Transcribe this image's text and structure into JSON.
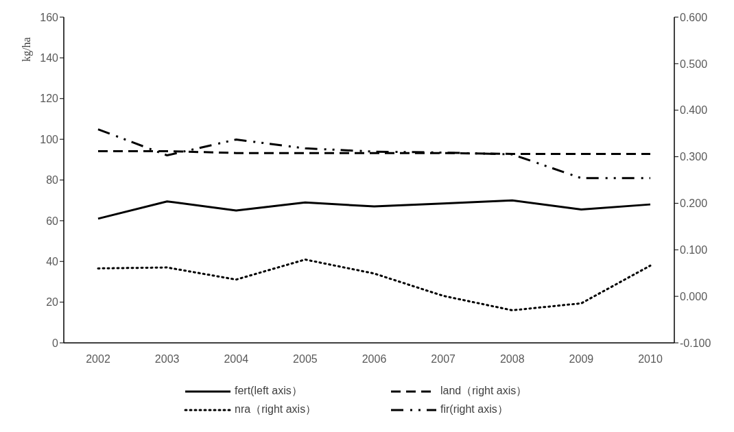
{
  "chart_data": {
    "type": "line",
    "ylabel": "kg/ha",
    "categories": [
      "2002",
      "2003",
      "2004",
      "2005",
      "2006",
      "2007",
      "2008",
      "2009",
      "2010"
    ],
    "ylim": [
      0,
      160
    ],
    "yticks": [
      0,
      20,
      40,
      60,
      80,
      100,
      120,
      140,
      160
    ],
    "y2lim": [
      -0.1,
      0.6
    ],
    "y2ticks": [
      {
        "value": -0.1,
        "label": "-0.100"
      },
      {
        "value": 0,
        "label": "0.000"
      },
      {
        "value": 0.1,
        "label": "0.100"
      },
      {
        "value": 0.2,
        "label": "0.200"
      },
      {
        "value": 0.3,
        "label": "0.300"
      },
      {
        "value": 0.4,
        "label": "0.400"
      },
      {
        "value": 0.5,
        "label": "0.500"
      },
      {
        "value": 0.6,
        "label": "0.600"
      }
    ],
    "grid": false,
    "legend": "bottom",
    "marker": "none",
    "series": [
      {
        "name": "fert(left axis）",
        "color": "#000000",
        "line_style": "solid",
        "values": [
          61,
          69.5,
          65,
          69,
          67,
          68.5,
          70,
          65.5,
          68
        ]
      },
      {
        "name": "land（right axis）",
        "color": "#000000",
        "line_style": "dashed",
        "axis": "y2",
        "values": [
          0.312,
          0.312,
          0.308,
          0.308,
          0.308,
          0.308,
          0.306,
          0.306,
          0.306
        ]
      },
      {
        "name": "nra（right axis）",
        "color": "#000000",
        "line_style": "dotted",
        "axis": "y2",
        "values": [
          0.06,
          0.062,
          0.036,
          0.079,
          0.049,
          0.001,
          -0.03,
          -0.015,
          0.066
        ]
      },
      {
        "name": "fir(right axis）",
        "color": "#000000",
        "line_style": "dashdot",
        "axis": "y2",
        "values": [
          0.359,
          0.303,
          0.337,
          0.318,
          0.311,
          0.309,
          0.305,
          0.254,
          0.254
        ]
      }
    ]
  }
}
